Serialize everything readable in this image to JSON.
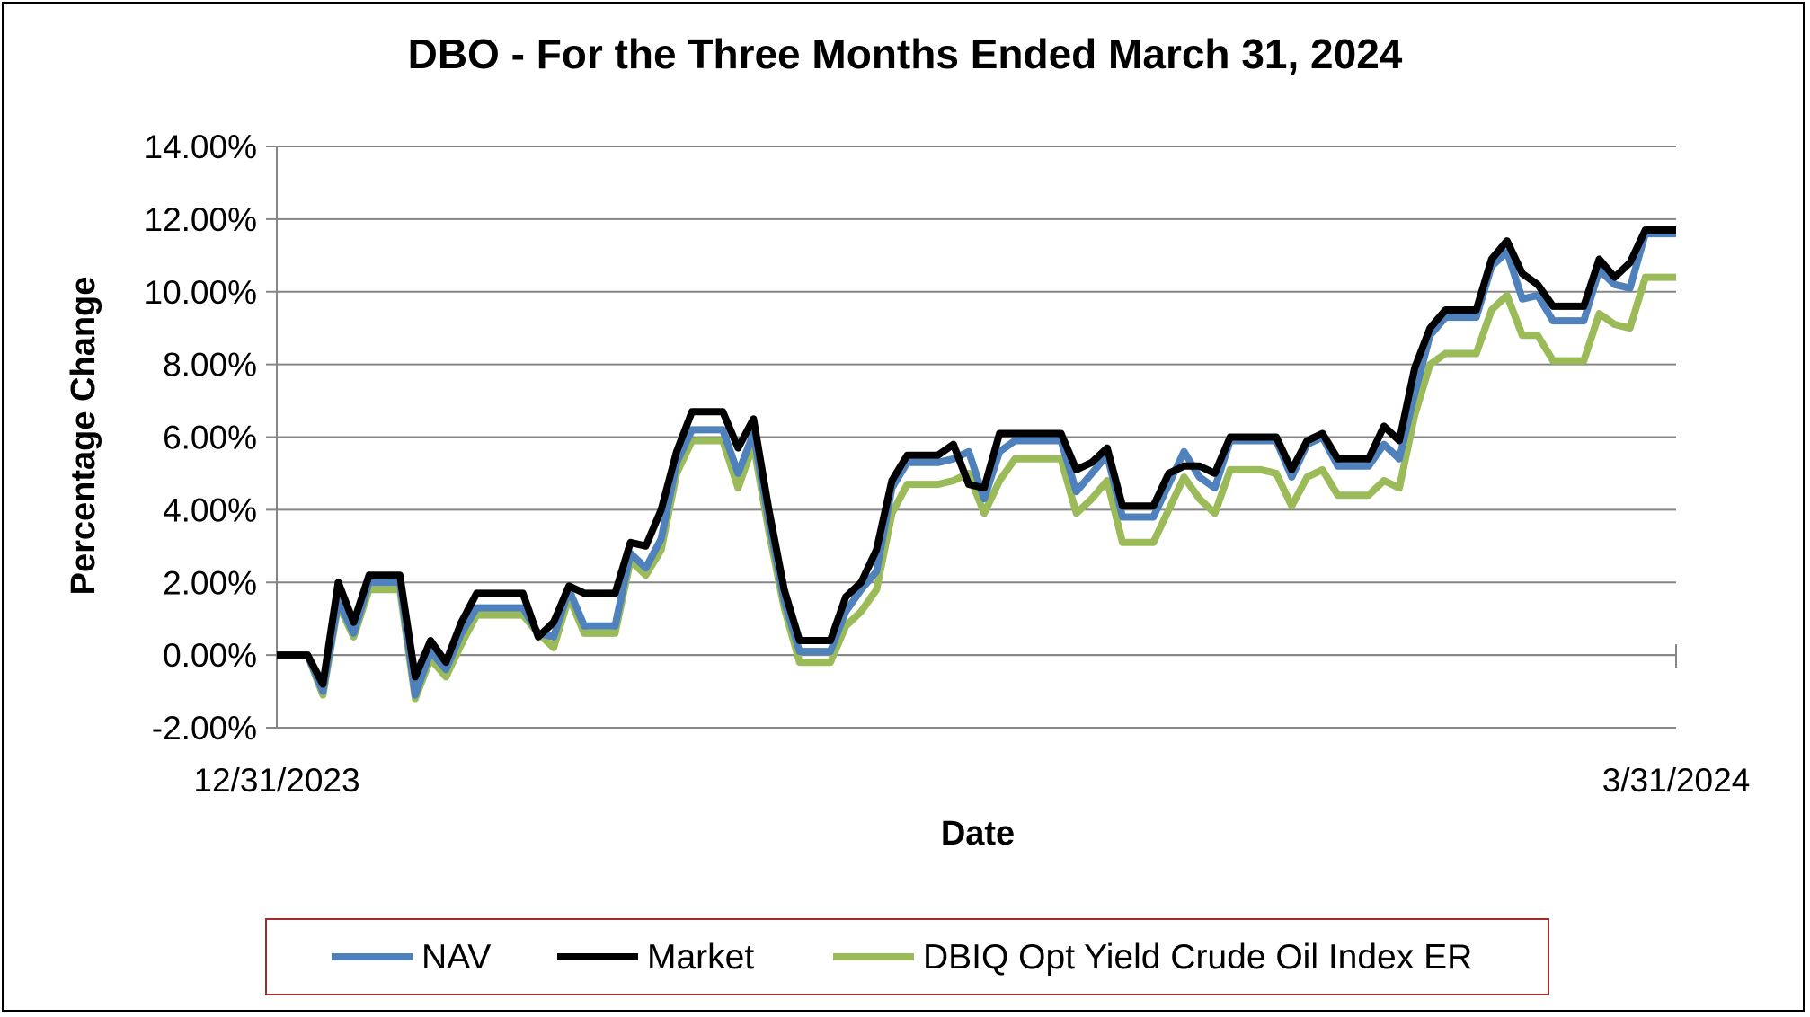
{
  "chart_data": {
    "type": "line",
    "title": "DBO - For the Three Months Ended March 31, 2024",
    "xlabel": "Date",
    "ylabel": "Percentage Change",
    "x_start": "12/31/2023",
    "x_end": "3/31/2024",
    "x_tick_labels": [
      "12/31/2023",
      "3/31/2024"
    ],
    "ylim": [
      -0.02,
      0.14
    ],
    "y_ticks": [
      -0.02,
      0.0,
      0.02,
      0.04,
      0.06,
      0.08,
      0.1,
      0.12,
      0.14
    ],
    "y_tick_labels": [
      "-2.00%",
      "0.00%",
      "2.00%",
      "4.00%",
      "6.00%",
      "8.00%",
      "10.00%",
      "12.00%",
      "14.00%"
    ],
    "grid": true,
    "legend_position": "bottom",
    "series": [
      {
        "name": "NAV",
        "color": "#4F81BD",
        "points": [
          [
            "2023-12-31",
            0.0
          ],
          [
            "2024-01-02",
            0.0
          ],
          [
            "2024-01-03",
            -1.0
          ],
          [
            "2024-01-04",
            1.5
          ],
          [
            "2024-01-05",
            0.6
          ],
          [
            "2024-01-06",
            2.0
          ],
          [
            "2024-01-07",
            2.0
          ],
          [
            "2024-01-08",
            2.0
          ],
          [
            "2024-01-09",
            -1.1
          ],
          [
            "2024-01-10",
            0.1
          ],
          [
            "2024-01-11",
            -0.4
          ],
          [
            "2024-01-12",
            0.6
          ],
          [
            "2024-01-13",
            1.3
          ],
          [
            "2024-01-14",
            1.3
          ],
          [
            "2024-01-15",
            1.3
          ],
          [
            "2024-01-16",
            1.3
          ],
          [
            "2024-01-17",
            0.6
          ],
          [
            "2024-01-18",
            0.5
          ],
          [
            "2024-01-19",
            1.8
          ],
          [
            "2024-01-20",
            0.8
          ],
          [
            "2024-01-21",
            0.8
          ],
          [
            "2024-01-22",
            0.8
          ],
          [
            "2024-01-23",
            2.8
          ],
          [
            "2024-01-24",
            2.4
          ],
          [
            "2024-01-25",
            3.2
          ],
          [
            "2024-01-26",
            5.3
          ],
          [
            "2024-01-27",
            6.2
          ],
          [
            "2024-01-28",
            6.2
          ],
          [
            "2024-01-29",
            6.2
          ],
          [
            "2024-01-30",
            5.0
          ],
          [
            "2024-01-31",
            6.1
          ],
          [
            "2024-02-01",
            3.7
          ],
          [
            "2024-02-02",
            1.5
          ],
          [
            "2024-02-03",
            0.1
          ],
          [
            "2024-02-04",
            0.1
          ],
          [
            "2024-02-05",
            0.1
          ],
          [
            "2024-02-06",
            1.2
          ],
          [
            "2024-02-07",
            1.8
          ],
          [
            "2024-02-08",
            2.3
          ],
          [
            "2024-02-09",
            4.6
          ],
          [
            "2024-02-10",
            5.3
          ],
          [
            "2024-02-11",
            5.3
          ],
          [
            "2024-02-12",
            5.3
          ],
          [
            "2024-02-13",
            5.4
          ],
          [
            "2024-02-14",
            5.6
          ],
          [
            "2024-02-15",
            4.3
          ],
          [
            "2024-02-16",
            5.6
          ],
          [
            "2024-02-17",
            5.9
          ],
          [
            "2024-02-18",
            5.9
          ],
          [
            "2024-02-19",
            5.9
          ],
          [
            "2024-02-20",
            5.9
          ],
          [
            "2024-02-21",
            4.5
          ],
          [
            "2024-02-22",
            5.0
          ],
          [
            "2024-02-23",
            5.5
          ],
          [
            "2024-02-24",
            3.8
          ],
          [
            "2024-02-25",
            3.8
          ],
          [
            "2024-02-26",
            3.8
          ],
          [
            "2024-02-27",
            4.7
          ],
          [
            "2024-02-28",
            5.6
          ],
          [
            "2024-02-29",
            4.9
          ],
          [
            "2024-03-01",
            4.6
          ],
          [
            "2024-03-02",
            5.9
          ],
          [
            "2024-03-03",
            5.9
          ],
          [
            "2024-03-04",
            5.9
          ],
          [
            "2024-03-05",
            5.9
          ],
          [
            "2024-03-06",
            4.9
          ],
          [
            "2024-03-07",
            5.8
          ],
          [
            "2024-03-08",
            6.0
          ],
          [
            "2024-03-09",
            5.2
          ],
          [
            "2024-03-10",
            5.2
          ],
          [
            "2024-03-11",
            5.2
          ],
          [
            "2024-03-12",
            5.8
          ],
          [
            "2024-03-13",
            5.4
          ],
          [
            "2024-03-14",
            7.2
          ],
          [
            "2024-03-15",
            8.8
          ],
          [
            "2024-03-16",
            9.3
          ],
          [
            "2024-03-17",
            9.3
          ],
          [
            "2024-03-18",
            9.3
          ],
          [
            "2024-03-19",
            10.7
          ],
          [
            "2024-03-20",
            11.1
          ],
          [
            "2024-03-21",
            9.8
          ],
          [
            "2024-03-22",
            9.9
          ],
          [
            "2024-03-23",
            9.2
          ],
          [
            "2024-03-24",
            9.2
          ],
          [
            "2024-03-25",
            9.2
          ],
          [
            "2024-03-26",
            10.6
          ],
          [
            "2024-03-27",
            10.2
          ],
          [
            "2024-03-28",
            10.1
          ],
          [
            "2024-03-29",
            11.6
          ],
          [
            "2024-03-30",
            11.6
          ],
          [
            "2024-03-31",
            11.6
          ]
        ]
      },
      {
        "name": "Market",
        "color": "#000000",
        "points": [
          [
            "2023-12-31",
            0.0
          ],
          [
            "2024-01-02",
            0.0
          ],
          [
            "2024-01-03",
            -0.8
          ],
          [
            "2024-01-04",
            2.0
          ],
          [
            "2024-01-05",
            0.9
          ],
          [
            "2024-01-06",
            2.2
          ],
          [
            "2024-01-07",
            2.2
          ],
          [
            "2024-01-08",
            2.2
          ],
          [
            "2024-01-09",
            -0.6
          ],
          [
            "2024-01-10",
            0.4
          ],
          [
            "2024-01-11",
            -0.2
          ],
          [
            "2024-01-12",
            0.9
          ],
          [
            "2024-01-13",
            1.7
          ],
          [
            "2024-01-14",
            1.7
          ],
          [
            "2024-01-15",
            1.7
          ],
          [
            "2024-01-16",
            1.7
          ],
          [
            "2024-01-17",
            0.5
          ],
          [
            "2024-01-18",
            0.9
          ],
          [
            "2024-01-19",
            1.9
          ],
          [
            "2024-01-20",
            1.7
          ],
          [
            "2024-01-21",
            1.7
          ],
          [
            "2024-01-22",
            1.7
          ],
          [
            "2024-01-23",
            3.1
          ],
          [
            "2024-01-24",
            3.0
          ],
          [
            "2024-01-25",
            4.0
          ],
          [
            "2024-01-26",
            5.6
          ],
          [
            "2024-01-27",
            6.7
          ],
          [
            "2024-01-28",
            6.7
          ],
          [
            "2024-01-29",
            6.7
          ],
          [
            "2024-01-30",
            5.7
          ],
          [
            "2024-01-31",
            6.5
          ],
          [
            "2024-02-01",
            4.0
          ],
          [
            "2024-02-02",
            1.8
          ],
          [
            "2024-02-03",
            0.4
          ],
          [
            "2024-02-04",
            0.4
          ],
          [
            "2024-02-05",
            0.4
          ],
          [
            "2024-02-06",
            1.6
          ],
          [
            "2024-02-07",
            2.0
          ],
          [
            "2024-02-08",
            2.9
          ],
          [
            "2024-02-09",
            4.8
          ],
          [
            "2024-02-10",
            5.5
          ],
          [
            "2024-02-11",
            5.5
          ],
          [
            "2024-02-12",
            5.5
          ],
          [
            "2024-02-13",
            5.8
          ],
          [
            "2024-02-14",
            4.7
          ],
          [
            "2024-02-15",
            4.6
          ],
          [
            "2024-02-16",
            6.1
          ],
          [
            "2024-02-17",
            6.1
          ],
          [
            "2024-02-18",
            6.1
          ],
          [
            "2024-02-19",
            6.1
          ],
          [
            "2024-02-20",
            6.1
          ],
          [
            "2024-02-21",
            5.1
          ],
          [
            "2024-02-22",
            5.3
          ],
          [
            "2024-02-23",
            5.7
          ],
          [
            "2024-02-24",
            4.1
          ],
          [
            "2024-02-25",
            4.1
          ],
          [
            "2024-02-26",
            4.1
          ],
          [
            "2024-02-27",
            5.0
          ],
          [
            "2024-02-28",
            5.2
          ],
          [
            "2024-02-29",
            5.2
          ],
          [
            "2024-03-01",
            5.0
          ],
          [
            "2024-03-02",
            6.0
          ],
          [
            "2024-03-03",
            6.0
          ],
          [
            "2024-03-04",
            6.0
          ],
          [
            "2024-03-05",
            6.0
          ],
          [
            "2024-03-06",
            5.1
          ],
          [
            "2024-03-07",
            5.9
          ],
          [
            "2024-03-08",
            6.1
          ],
          [
            "2024-03-09",
            5.4
          ],
          [
            "2024-03-10",
            5.4
          ],
          [
            "2024-03-11",
            5.4
          ],
          [
            "2024-03-12",
            6.3
          ],
          [
            "2024-03-13",
            5.9
          ],
          [
            "2024-03-14",
            7.9
          ],
          [
            "2024-03-15",
            9.0
          ],
          [
            "2024-03-16",
            9.5
          ],
          [
            "2024-03-17",
            9.5
          ],
          [
            "2024-03-18",
            9.5
          ],
          [
            "2024-03-19",
            10.9
          ],
          [
            "2024-03-20",
            11.4
          ],
          [
            "2024-03-21",
            10.5
          ],
          [
            "2024-03-22",
            10.2
          ],
          [
            "2024-03-23",
            9.6
          ],
          [
            "2024-03-24",
            9.6
          ],
          [
            "2024-03-25",
            9.6
          ],
          [
            "2024-03-26",
            10.9
          ],
          [
            "2024-03-27",
            10.4
          ],
          [
            "2024-03-28",
            10.8
          ],
          [
            "2024-03-29",
            11.7
          ],
          [
            "2024-03-30",
            11.7
          ],
          [
            "2024-03-31",
            11.7
          ]
        ]
      },
      {
        "name": "DBIQ Opt Yield Crude Oil Index ER",
        "color": "#9BBB59",
        "points": [
          [
            "2023-12-31",
            0.0
          ],
          [
            "2024-01-02",
            0.0
          ],
          [
            "2024-01-03",
            -1.1
          ],
          [
            "2024-01-04",
            1.4
          ],
          [
            "2024-01-05",
            0.5
          ],
          [
            "2024-01-06",
            1.8
          ],
          [
            "2024-01-07",
            1.8
          ],
          [
            "2024-01-08",
            1.8
          ],
          [
            "2024-01-09",
            -1.2
          ],
          [
            "2024-01-10",
            -0.1
          ],
          [
            "2024-01-11",
            -0.6
          ],
          [
            "2024-01-12",
            0.3
          ],
          [
            "2024-01-13",
            1.1
          ],
          [
            "2024-01-14",
            1.1
          ],
          [
            "2024-01-15",
            1.1
          ],
          [
            "2024-01-16",
            1.1
          ],
          [
            "2024-01-17",
            0.6
          ],
          [
            "2024-01-18",
            0.2
          ],
          [
            "2024-01-19",
            1.6
          ],
          [
            "2024-01-20",
            0.6
          ],
          [
            "2024-01-21",
            0.6
          ],
          [
            "2024-01-22",
            0.6
          ],
          [
            "2024-01-23",
            2.6
          ],
          [
            "2024-01-24",
            2.2
          ],
          [
            "2024-01-25",
            2.9
          ],
          [
            "2024-01-26",
            5.0
          ],
          [
            "2024-01-27",
            5.9
          ],
          [
            "2024-01-28",
            5.9
          ],
          [
            "2024-01-29",
            5.9
          ],
          [
            "2024-01-30",
            4.6
          ],
          [
            "2024-01-31",
            5.8
          ],
          [
            "2024-02-01",
            3.4
          ],
          [
            "2024-02-02",
            1.3
          ],
          [
            "2024-02-03",
            -0.2
          ],
          [
            "2024-02-04",
            -0.2
          ],
          [
            "2024-02-05",
            -0.2
          ],
          [
            "2024-02-06",
            0.8
          ],
          [
            "2024-02-07",
            1.2
          ],
          [
            "2024-02-08",
            1.8
          ],
          [
            "2024-02-09",
            3.9
          ],
          [
            "2024-02-10",
            4.7
          ],
          [
            "2024-02-11",
            4.7
          ],
          [
            "2024-02-12",
            4.7
          ],
          [
            "2024-02-13",
            4.8
          ],
          [
            "2024-02-14",
            5.0
          ],
          [
            "2024-02-15",
            3.9
          ],
          [
            "2024-02-16",
            4.8
          ],
          [
            "2024-02-17",
            5.4
          ],
          [
            "2024-02-18",
            5.4
          ],
          [
            "2024-02-19",
            5.4
          ],
          [
            "2024-02-20",
            5.4
          ],
          [
            "2024-02-21",
            3.9
          ],
          [
            "2024-02-22",
            4.3
          ],
          [
            "2024-02-23",
            4.8
          ],
          [
            "2024-02-24",
            3.1
          ],
          [
            "2024-02-25",
            3.1
          ],
          [
            "2024-02-26",
            3.1
          ],
          [
            "2024-02-27",
            4.0
          ],
          [
            "2024-02-28",
            4.9
          ],
          [
            "2024-02-29",
            4.3
          ],
          [
            "2024-03-01",
            3.9
          ],
          [
            "2024-03-02",
            5.1
          ],
          [
            "2024-03-03",
            5.1
          ],
          [
            "2024-03-04",
            5.1
          ],
          [
            "2024-03-05",
            5.0
          ],
          [
            "2024-03-06",
            4.1
          ],
          [
            "2024-03-07",
            4.9
          ],
          [
            "2024-03-08",
            5.1
          ],
          [
            "2024-03-09",
            4.4
          ],
          [
            "2024-03-10",
            4.4
          ],
          [
            "2024-03-11",
            4.4
          ],
          [
            "2024-03-12",
            4.8
          ],
          [
            "2024-03-13",
            4.6
          ],
          [
            "2024-03-14",
            6.6
          ],
          [
            "2024-03-15",
            8.0
          ],
          [
            "2024-03-16",
            8.3
          ],
          [
            "2024-03-17",
            8.3
          ],
          [
            "2024-03-18",
            8.3
          ],
          [
            "2024-03-19",
            9.5
          ],
          [
            "2024-03-20",
            9.9
          ],
          [
            "2024-03-21",
            8.8
          ],
          [
            "2024-03-22",
            8.8
          ],
          [
            "2024-03-23",
            8.1
          ],
          [
            "2024-03-24",
            8.1
          ],
          [
            "2024-03-25",
            8.1
          ],
          [
            "2024-03-26",
            9.4
          ],
          [
            "2024-03-27",
            9.1
          ],
          [
            "2024-03-28",
            9.0
          ],
          [
            "2024-03-29",
            10.4
          ],
          [
            "2024-03-30",
            10.4
          ],
          [
            "2024-03-31",
            10.4
          ]
        ]
      }
    ]
  }
}
